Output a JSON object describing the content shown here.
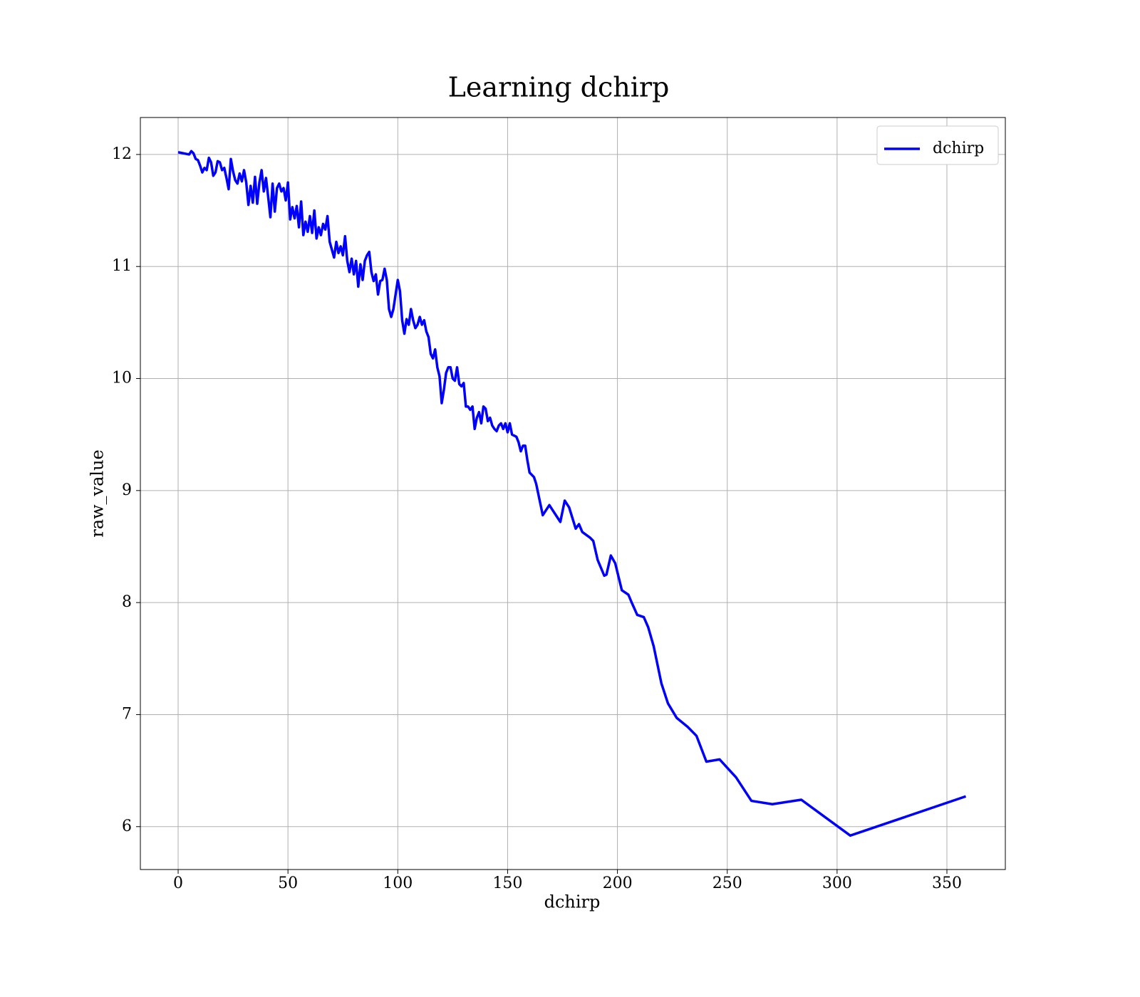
{
  "chart_data": {
    "type": "line",
    "title": "Learning dchirp",
    "xlabel": "dchirp",
    "ylabel": "raw_value",
    "x": [
      0,
      5,
      6,
      7,
      8,
      9,
      10,
      11,
      12,
      13,
      14,
      15,
      16,
      17,
      18,
      19,
      20,
      21,
      22,
      23,
      24,
      25,
      26,
      27,
      28,
      29,
      30,
      31,
      32,
      33,
      34,
      35,
      36,
      37,
      38,
      39,
      40,
      41,
      42,
      43,
      44,
      45,
      46,
      47,
      48,
      49,
      50,
      51,
      52,
      53,
      54,
      55,
      56,
      57,
      58,
      59,
      60,
      61,
      62,
      63,
      64,
      65,
      66,
      67,
      68,
      69,
      70,
      71,
      72,
      73,
      74,
      75,
      76,
      77,
      78,
      79,
      80,
      81,
      82,
      83,
      84,
      85,
      86,
      87,
      88,
      89,
      90,
      91,
      92,
      93,
      94,
      95,
      96,
      97,
      98,
      99,
      100,
      101,
      102,
      103,
      104,
      105,
      106,
      107,
      108,
      109,
      110,
      111,
      112,
      113,
      114,
      115,
      116,
      117,
      118,
      119,
      120,
      121,
      122,
      123,
      124,
      125,
      126,
      127,
      128,
      129,
      130,
      131,
      132,
      133,
      134,
      135,
      136,
      137,
      138,
      139,
      140,
      141,
      142,
      143,
      144,
      145,
      146,
      147,
      148,
      149,
      150,
      151,
      152,
      154,
      155,
      156,
      157,
      158,
      159,
      160,
      162,
      163,
      166,
      169,
      174,
      176,
      178,
      181,
      182.5,
      184,
      187.5,
      189,
      191,
      194,
      195,
      197,
      199,
      202,
      205,
      206.5,
      209,
      212,
      214,
      216.5,
      220,
      223,
      227,
      232,
      236,
      240.5,
      246.5,
      254,
      261,
      270.5,
      283.7,
      306,
      358.6
    ],
    "series": [
      {
        "name": "dchirp",
        "color": "#0000ff",
        "values": [
          12.02,
          12.0,
          12.03,
          12.01,
          11.96,
          11.95,
          11.9,
          11.84,
          11.88,
          11.86,
          11.97,
          11.93,
          11.81,
          11.84,
          11.94,
          11.93,
          11.86,
          11.88,
          11.79,
          11.69,
          11.96,
          11.85,
          11.77,
          11.74,
          11.83,
          11.76,
          11.86,
          11.75,
          11.55,
          11.72,
          11.57,
          11.8,
          11.56,
          11.75,
          11.86,
          11.67,
          11.79,
          11.62,
          11.44,
          11.74,
          11.49,
          11.7,
          11.74,
          11.67,
          11.7,
          11.59,
          11.75,
          11.42,
          11.53,
          11.43,
          11.54,
          11.35,
          11.58,
          11.28,
          11.4,
          11.31,
          11.45,
          11.3,
          11.5,
          11.25,
          11.35,
          11.28,
          11.38,
          11.33,
          11.45,
          11.22,
          11.15,
          11.08,
          11.22,
          11.12,
          11.18,
          11.1,
          11.27,
          11.05,
          10.95,
          11.07,
          10.93,
          11.05,
          10.82,
          11.02,
          10.88,
          11.05,
          11.1,
          11.13,
          10.95,
          10.87,
          10.93,
          10.75,
          10.87,
          10.88,
          10.98,
          10.88,
          10.62,
          10.55,
          10.62,
          10.75,
          10.88,
          10.78,
          10.52,
          10.4,
          10.53,
          10.48,
          10.62,
          10.52,
          10.45,
          10.48,
          10.55,
          10.48,
          10.52,
          10.42,
          10.37,
          10.22,
          10.18,
          10.26,
          10.1,
          10.02,
          9.78,
          9.9,
          10.05,
          10.1,
          10.1,
          10.0,
          9.98,
          10.1,
          9.95,
          9.93,
          9.96,
          9.75,
          9.75,
          9.72,
          9.75,
          9.55,
          9.65,
          9.7,
          9.6,
          9.75,
          9.73,
          9.62,
          9.65,
          9.58,
          9.55,
          9.53,
          9.58,
          9.6,
          9.55,
          9.6,
          9.52,
          9.6,
          9.5,
          9.48,
          9.43,
          9.35,
          9.4,
          9.4,
          9.27,
          9.16,
          9.12,
          9.06,
          8.78,
          8.87,
          8.72,
          8.91,
          8.85,
          8.66,
          8.7,
          8.63,
          8.58,
          8.55,
          8.38,
          8.24,
          8.25,
          8.42,
          8.35,
          8.11,
          8.07,
          8.0,
          7.89,
          7.87,
          7.78,
          7.61,
          7.28,
          7.1,
          6.97,
          6.89,
          6.81,
          6.58,
          6.6,
          6.44,
          6.23,
          6.2,
          6.24,
          5.92,
          6.27
        ]
      }
    ],
    "xlim": [
      -17.2,
      376.6
    ],
    "ylim": [
      5.617,
      12.33
    ],
    "xticks": [
      0,
      50,
      100,
      150,
      200,
      250,
      300,
      350
    ],
    "yticks": [
      6,
      7,
      8,
      9,
      10,
      11,
      12
    ],
    "grid": true,
    "legend": "upper right"
  }
}
